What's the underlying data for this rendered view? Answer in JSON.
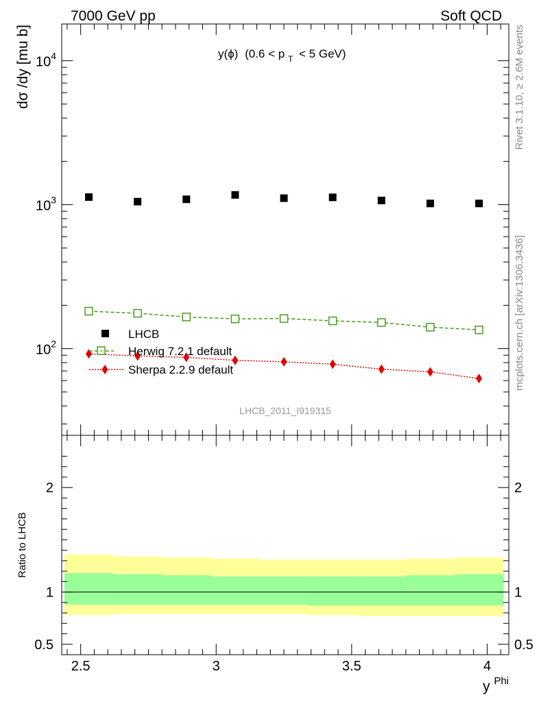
{
  "header": {
    "energy_label": "7000 GeV pp",
    "category_label": "Soft QCD",
    "rivet_label": "Rivet 3.1.10, ≥ 2.6M events",
    "mcplots_label": "mcplots.cern.ch [arXiv:1306.3436]",
    "analysis_id": "LHCB_2011_I919315"
  },
  "chart_data": {
    "type": "scatter",
    "title_main": "y(ϕ)",
    "title_cut": "(0.6 < p",
    "title_sub": "T",
    "title_end": "< 5 GeV)",
    "ylabel": "dσ /dy [mu b]",
    "ratio_ylabel": "Ratio to LHCB",
    "xlabel_base": "y",
    "xlabel_sup": "Phi",
    "xlim": [
      2.43,
      4.08
    ],
    "ylim": [
      25,
      18000
    ],
    "yscale": "log",
    "ratio_ylim": [
      0.4,
      2.5
    ],
    "x_ticks": [
      "2.5",
      "3",
      "3.5",
      "4"
    ],
    "x_tick_values": [
      2.5,
      3,
      3.5,
      4
    ],
    "y_ticks": [
      {
        "value": 100,
        "base": "10",
        "exp": "2"
      },
      {
        "value": 1000,
        "base": "10",
        "exp": "3"
      },
      {
        "value": 10000,
        "base": "10",
        "exp": "4"
      }
    ],
    "ratio_ticks": [
      "0.5",
      "1",
      "2"
    ],
    "ratio_tick_values": [
      0.5,
      1,
      2
    ],
    "x": [
      2.53,
      2.71,
      2.89,
      3.07,
      3.25,
      3.43,
      3.61,
      3.79,
      3.97
    ],
    "bin_edges": [
      2.44,
      2.62,
      2.8,
      2.98,
      3.16,
      3.34,
      3.52,
      3.7,
      3.88,
      4.06
    ],
    "series": [
      {
        "name": "LHCB",
        "color": "#000000",
        "marker": "square-filled",
        "values": [
          1130,
          1050,
          1090,
          1170,
          1110,
          1125,
          1070,
          1020,
          1020
        ]
      },
      {
        "name": "Herwig 7.2.1 default",
        "color": "#4a9a1a",
        "marker": "square-open",
        "line": "dashed",
        "values": [
          182,
          176,
          166,
          161,
          162,
          156,
          152,
          141,
          135
        ]
      },
      {
        "name": "Sherpa 2.2.9 default",
        "color": "#e00000",
        "marker": "diamond-filled",
        "line": "dotted",
        "values": [
          92,
          89,
          87,
          83,
          81,
          78,
          72,
          69,
          62
        ]
      }
    ],
    "ratio_bands": {
      "outer_color": "#ffff99",
      "inner_color": "#99ff99",
      "outer_up": [
        1.36,
        1.34,
        1.33,
        1.32,
        1.31,
        1.31,
        1.31,
        1.32,
        1.33
      ],
      "outer_down": [
        0.78,
        0.79,
        0.79,
        0.79,
        0.79,
        0.78,
        0.77,
        0.77,
        0.77
      ],
      "inner_up": [
        1.18,
        1.17,
        1.16,
        1.15,
        1.15,
        1.15,
        1.15,
        1.16,
        1.17
      ],
      "inner_down": [
        0.88,
        0.88,
        0.88,
        0.88,
        0.88,
        0.87,
        0.87,
        0.87,
        0.87
      ]
    }
  }
}
